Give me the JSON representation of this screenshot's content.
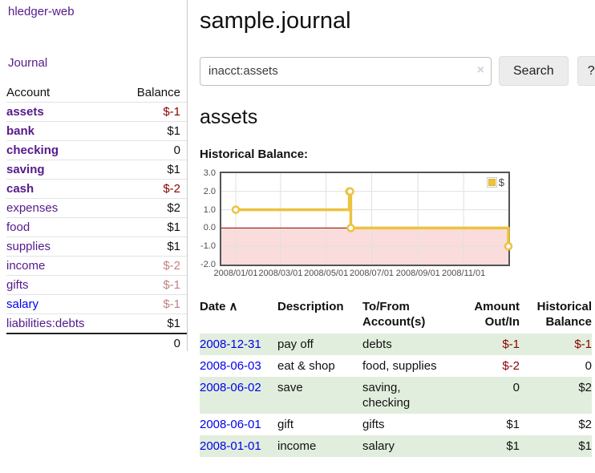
{
  "app": {
    "title": "hledger-web"
  },
  "sidebar": {
    "journal_link": "Journal",
    "accounts_header": {
      "account": "Account",
      "balance": "Balance"
    },
    "accounts": [
      {
        "name": "assets",
        "balance": "$-1",
        "level": 1,
        "bold": true,
        "name_color": "purple",
        "balance_style": "neg"
      },
      {
        "name": "bank",
        "balance": "$1",
        "level": 2,
        "bold": true,
        "name_color": "purple",
        "balance_style": "pos"
      },
      {
        "name": "checking",
        "balance": "0",
        "level": 3,
        "bold": true,
        "name_color": "purple",
        "balance_style": "pos"
      },
      {
        "name": "saving",
        "balance": "$1",
        "level": 3,
        "bold": true,
        "name_color": "purple",
        "balance_style": "pos"
      },
      {
        "name": "cash",
        "balance": "$-2",
        "level": 2,
        "bold": true,
        "name_color": "purple",
        "balance_style": "neg"
      },
      {
        "name": "expenses",
        "balance": "$2",
        "level": 1,
        "bold": false,
        "name_color": "purple",
        "balance_style": "pos"
      },
      {
        "name": "food",
        "balance": "$1",
        "level": 2,
        "bold": false,
        "name_color": "purple",
        "balance_style": "pos"
      },
      {
        "name": "supplies",
        "balance": "$1",
        "level": 2,
        "bold": false,
        "name_color": "purple",
        "balance_style": "pos"
      },
      {
        "name": "income",
        "balance": "$-2",
        "level": 1,
        "bold": false,
        "name_color": "purple",
        "balance_style": "negmuted"
      },
      {
        "name": "gifts",
        "balance": "$-1",
        "level": 2,
        "bold": false,
        "name_color": "purple",
        "balance_style": "negmuted"
      },
      {
        "name": "salary",
        "balance": "$-1",
        "level": 2,
        "bold": false,
        "name_color": "blue",
        "balance_style": "negmuted"
      },
      {
        "name": "liabilities:debts",
        "balance": "$1",
        "level": 1,
        "bold": false,
        "name_color": "purple",
        "balance_style": "pos"
      }
    ],
    "total": "0"
  },
  "header": {
    "title": "sample.journal"
  },
  "search": {
    "query": "inacct:assets",
    "clear_icon": "×",
    "button_label": "Search",
    "help_label": "?"
  },
  "account_page": {
    "heading": "assets",
    "chart_label": "Historical Balance:"
  },
  "chart_data": {
    "type": "line",
    "step": true,
    "title": "Historical Balance",
    "legend": {
      "label": "$",
      "position": "top-right"
    },
    "series": [
      {
        "name": "$",
        "color": "#edc240",
        "points": [
          [
            "2008-01-01",
            1
          ],
          [
            "2008-06-01",
            2
          ],
          [
            "2008-06-02",
            2
          ],
          [
            "2008-06-03",
            0
          ],
          [
            "2008-12-31",
            -1
          ]
        ]
      }
    ],
    "x_ticks": [
      "2008/01/01",
      "2008/03/01",
      "2008/05/01",
      "2008/07/01",
      "2008/09/01",
      "2008/11/01"
    ],
    "y_ticks": [
      "3.0",
      "2.0",
      "1.0",
      "0.0",
      "-1.0",
      "-2.0"
    ],
    "ylim": [
      -2,
      3
    ],
    "x_range_days": 365,
    "grid": true,
    "negative_region_color": "#fbdcdc",
    "zero_line_color": "#8b0000",
    "grid_color": "#e0e0e0",
    "border_color": "#545454"
  },
  "register": {
    "columns": {
      "date": "Date",
      "sort_icon": "∧",
      "description": "Description",
      "tofrom": "To/From\nAccount(s)",
      "amount": "Amount\nOut/In",
      "balance": "Historical\nBalance"
    },
    "rows": [
      {
        "date": "2008-12-31",
        "description": "pay off",
        "tofrom": "debts",
        "amount": "$-1",
        "amount_neg": true,
        "balance": "$-1",
        "balance_neg": true
      },
      {
        "date": "2008-06-03",
        "description": "eat & shop",
        "tofrom": "food, supplies",
        "amount": "$-2",
        "amount_neg": true,
        "balance": "0",
        "balance_neg": false
      },
      {
        "date": "2008-06-02",
        "description": "save",
        "tofrom": "saving,\nchecking",
        "amount": "0",
        "amount_neg": false,
        "balance": "$2",
        "balance_neg": false
      },
      {
        "date": "2008-06-01",
        "description": "gift",
        "tofrom": "gifts",
        "amount": "$1",
        "amount_neg": false,
        "balance": "$2",
        "balance_neg": false
      },
      {
        "date": "2008-01-01",
        "description": "income",
        "tofrom": "salary",
        "amount": "$1",
        "amount_neg": false,
        "balance": "$1",
        "balance_neg": false
      }
    ]
  },
  "colors": {
    "link_purple": "#551a8b",
    "link_blue": "#0000ee",
    "negative": "#8b0000",
    "negative_muted": "#c28181",
    "row_green": "#e2eedd",
    "series_yellow": "#edc240",
    "negative_region": "#fbdcdc"
  }
}
